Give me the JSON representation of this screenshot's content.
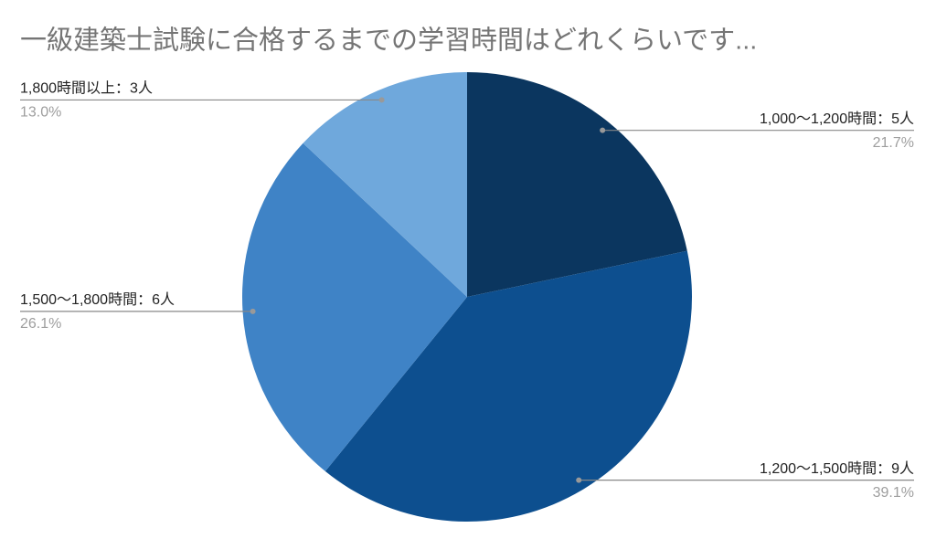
{
  "chart_data": {
    "type": "pie",
    "title": "一級建築士試験に合格するまでの学習時間はどれくらいです...",
    "categories": [
      "1,000〜1,200時間：5人",
      "1,200〜1,500時間：9人",
      "1,500〜1,800時間：6人",
      "1,800時間以上：3人"
    ],
    "values": [
      21.7,
      39.1,
      26.1,
      13.0
    ],
    "value_labels": [
      "21.7%",
      "39.1%",
      "26.1%",
      "13.0%"
    ],
    "colors": [
      "#0b365f",
      "#0d4f8f",
      "#3f83c6",
      "#6fa8dc"
    ]
  }
}
